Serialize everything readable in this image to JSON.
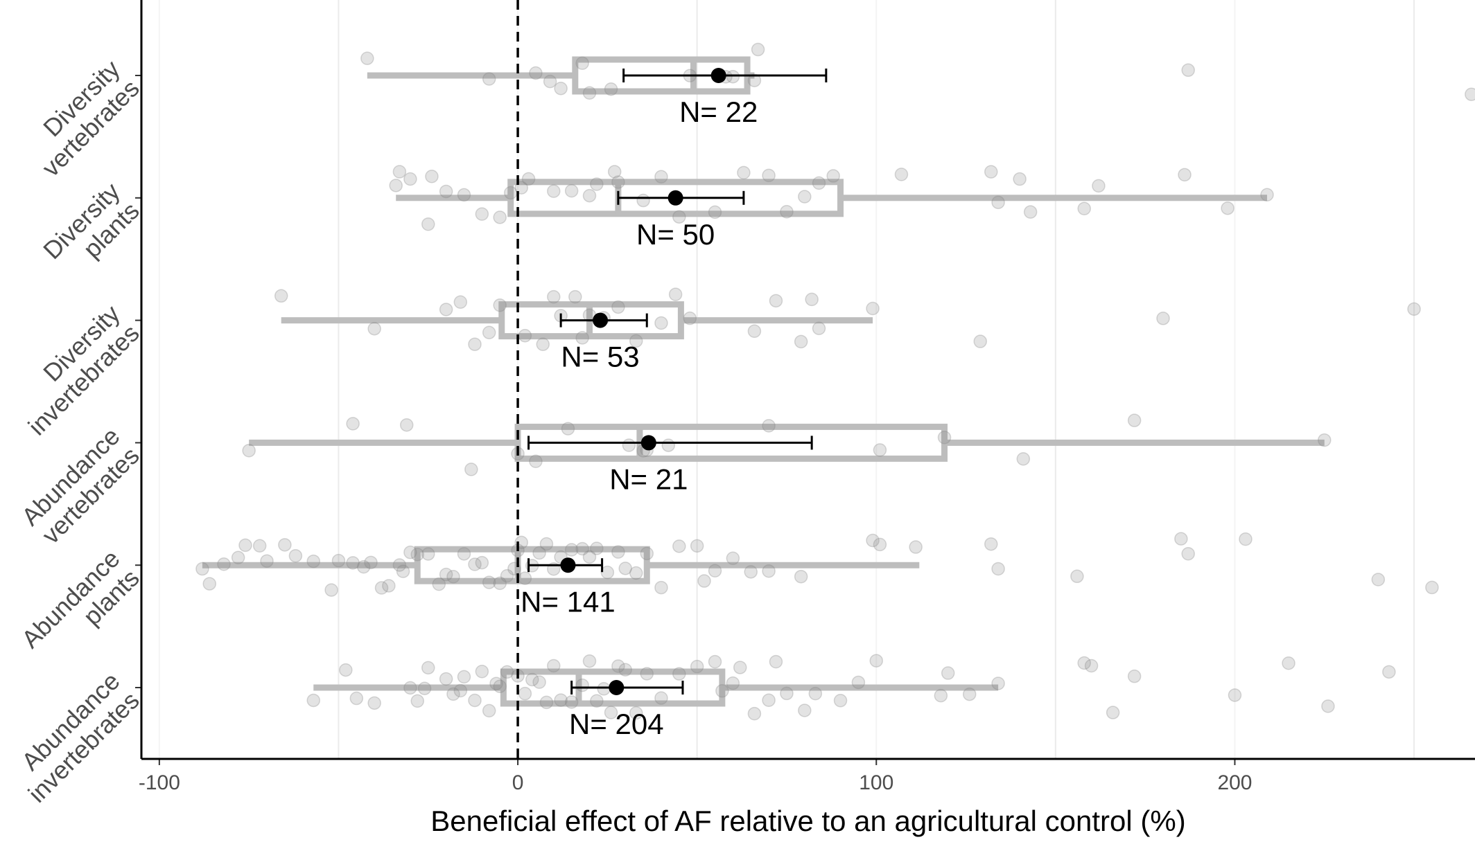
{
  "chart_data": {
    "type": "boxplot",
    "xlabel": "Beneficial effect of AF relative to an agricultural control (%)",
    "xlim": [
      -105,
      267
    ],
    "xticks": [
      -100,
      0,
      100,
      200
    ],
    "minor_xticks": [
      -50,
      50,
      150,
      250
    ],
    "reference_line": 0,
    "grid": true,
    "box_color": "#bdbdbd",
    "point_color": "#808080",
    "mean_color": "#000000",
    "groups": [
      {
        "name": [
          "Diversity",
          "vertebrates"
        ],
        "n_label": "N= 22",
        "whisker_low": -42,
        "q1": 16,
        "median": 49,
        "q3": 64,
        "whisker_high": 66,
        "mean": 56,
        "ci_low": 29.5,
        "ci_high": 86,
        "points": [
          -42,
          12,
          -8,
          5,
          18,
          20,
          26,
          48,
          58,
          60,
          67,
          66,
          9,
          187,
          266
        ]
      },
      {
        "name": [
          "Diversity",
          "plants"
        ],
        "n_label": "N= 50",
        "whisker_low": -34,
        "q1": -2,
        "median": 28,
        "q3": 90,
        "whisker_high": 209,
        "mean": 44,
        "ci_low": 28,
        "ci_high": 63,
        "points": [
          -34,
          -25,
          -24,
          -15,
          -10,
          -2,
          1,
          3,
          10,
          20,
          27,
          28,
          35,
          45,
          55,
          63,
          70,
          75,
          80,
          84,
          88,
          107,
          132,
          134,
          140,
          143,
          158,
          162,
          186,
          198,
          209,
          -33,
          -30,
          -20,
          -5,
          15,
          22,
          40
        ]
      },
      {
        "name": [
          "Diversity",
          "invertebrates"
        ],
        "n_label": "N= 53",
        "whisker_low": -66,
        "q1": -4.5,
        "median": 20,
        "q3": 45.5,
        "whisker_high": 99,
        "mean": 23,
        "ci_low": 12,
        "ci_high": 36,
        "points": [
          -66,
          -40,
          -20,
          -16,
          -12,
          -8,
          -5,
          2,
          7,
          10,
          12,
          16,
          18,
          20,
          24,
          28,
          33,
          40,
          44,
          48,
          66,
          72,
          79,
          82,
          84,
          99,
          129,
          180,
          250
        ]
      },
      {
        "name": [
          "Abundance",
          "vertebrates"
        ],
        "n_label": "N= 21",
        "whisker_low": -75,
        "q1": 0,
        "median": 34,
        "q3": 119,
        "whisker_high": 225,
        "mean": 36.5,
        "ci_low": 3,
        "ci_high": 82,
        "points": [
          -75,
          -46,
          -31,
          -13,
          0,
          5,
          14,
          31,
          35,
          36,
          42,
          70,
          101,
          119,
          141,
          172,
          225
        ]
      },
      {
        "name": [
          "Abundance",
          "plants"
        ],
        "n_label": "N= 141",
        "whisker_low": -88,
        "q1": -28,
        "median": 0,
        "q3": 36,
        "whisker_high": 112,
        "mean": 14,
        "ci_low": 3,
        "ci_high": 23.5,
        "points": [
          -88,
          -86,
          -82,
          -78,
          -76,
          -72,
          -70,
          -65,
          -62,
          -57,
          -52,
          -50,
          -46,
          -43,
          -41,
          -38,
          -36,
          -33,
          -32,
          -30,
          -28,
          -25,
          -22,
          -20,
          -18,
          -15,
          -12,
          -10,
          -8,
          -5,
          -3,
          -1,
          0,
          1,
          2,
          4,
          6,
          8,
          10,
          12,
          15,
          18,
          20,
          22,
          25,
          28,
          30,
          33,
          36,
          40,
          45,
          50,
          52,
          55,
          60,
          65,
          70,
          79,
          99,
          101,
          111,
          132,
          134,
          156,
          185,
          187,
          203,
          240,
          255
        ]
      },
      {
        "name": [
          "Abundance",
          "invertebrates"
        ],
        "n_label": "N= 204",
        "whisker_low": -57,
        "q1": -4,
        "median": 17,
        "q3": 57,
        "whisker_high": 134,
        "mean": 27.5,
        "ci_low": 15,
        "ci_high": 46,
        "points": [
          -57,
          -48,
          -45,
          -40,
          -30,
          -28,
          -26,
          -25,
          -20,
          -18,
          -16,
          -15,
          -12,
          -10,
          -8,
          -6,
          -5,
          -3,
          0,
          2,
          4,
          6,
          8,
          10,
          12,
          15,
          18,
          20,
          22,
          24,
          26,
          28,
          30,
          33,
          36,
          40,
          45,
          50,
          55,
          57,
          60,
          62,
          66,
          70,
          72,
          75,
          80,
          83,
          90,
          95,
          100,
          118,
          120,
          126,
          134,
          158,
          160,
          166,
          172,
          200,
          215,
          226,
          243
        ]
      }
    ]
  }
}
